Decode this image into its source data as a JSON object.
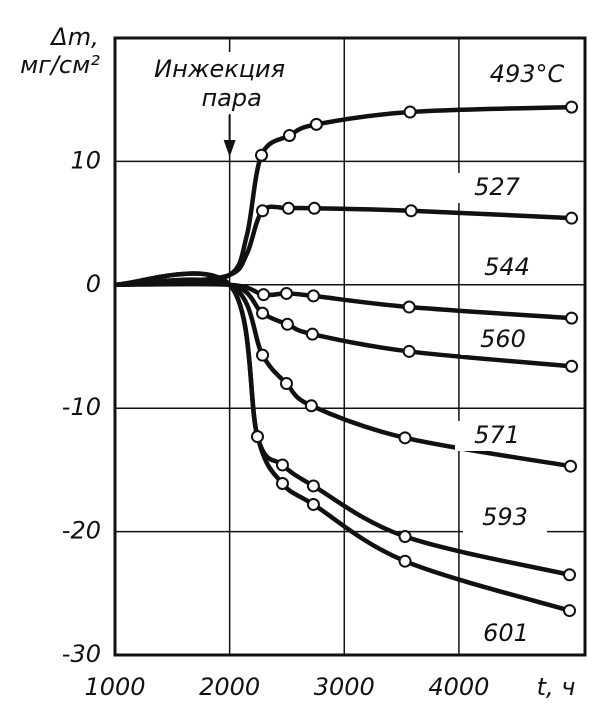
{
  "chart_data": {
    "type": "line",
    "y_label": [
      "Δm,",
      "мг/см²"
    ],
    "x_label": "t, ч",
    "annotation": {
      "lines": [
        "Инжекция",
        "пара"
      ],
      "x": 2000
    },
    "xlim": [
      1000,
      5100
    ],
    "ylim": [
      -30,
      20
    ],
    "xticks": [
      1000,
      2000,
      3000,
      4000
    ],
    "yticks": [
      -30,
      -20,
      -10,
      0,
      10
    ],
    "grid": true,
    "series": [
      {
        "name": "493°С",
        "color": "#111111",
        "x": [
          1000,
          1500,
          2000,
          2150,
          2278,
          2522,
          2757,
          3574,
          4983
        ],
        "values": [
          0,
          0.2,
          0.8,
          4,
          10.5,
          12.1,
          13.0,
          14.0,
          14.4
        ],
        "markers": [
          false,
          false,
          false,
          false,
          true,
          true,
          true,
          true,
          true
        ]
      },
      {
        "name": "527",
        "color": "#111111",
        "x": [
          1000,
          1500,
          2000,
          2150,
          2287,
          2513,
          2739,
          3583,
          4983
        ],
        "values": [
          0,
          0.2,
          0.8,
          2.5,
          6.0,
          6.2,
          6.2,
          6.0,
          5.4
        ],
        "markers": [
          false,
          false,
          false,
          false,
          true,
          true,
          true,
          true,
          true
        ]
      },
      {
        "name": "544",
        "color": "#111111",
        "x": [
          1000,
          2000,
          2296,
          2496,
          2731,
          3566,
          4983
        ],
        "values": [
          0,
          0,
          -0.8,
          -0.7,
          -0.9,
          -1.8,
          -2.7
        ],
        "markers": [
          false,
          false,
          true,
          true,
          true,
          true,
          true
        ]
      },
      {
        "name": "560",
        "color": "#111111",
        "x": [
          1000,
          2000,
          2287,
          2504,
          2722,
          3566,
          4983
        ],
        "values": [
          0,
          0,
          -2.3,
          -3.2,
          -4.0,
          -5.4,
          -6.6
        ],
        "markers": [
          false,
          false,
          true,
          true,
          true,
          true,
          true
        ]
      },
      {
        "name": "571",
        "color": "#111111",
        "x": [
          1000,
          2000,
          2287,
          2496,
          2713,
          3530,
          4974
        ],
        "values": [
          0,
          0,
          -5.7,
          -8.0,
          -9.8,
          -12.4,
          -14.7
        ],
        "markers": [
          false,
          false,
          true,
          true,
          true,
          true,
          true
        ]
      },
      {
        "name": "593",
        "color": "#111111",
        "x": [
          1000,
          2000,
          2243,
          2461,
          2731,
          3530,
          4965
        ],
        "values": [
          0,
          0,
          -12.3,
          -14.6,
          -16.3,
          -20.4,
          -23.5
        ],
        "markers": [
          false,
          false,
          true,
          true,
          true,
          true,
          true
        ]
      },
      {
        "name": "601",
        "color": "#111111",
        "x": [
          1000,
          2000,
          2243,
          2461,
          2731,
          3530,
          4965
        ],
        "values": [
          0,
          0,
          -12.3,
          -16.1,
          -17.8,
          -22.4,
          -26.4
        ],
        "markers": [
          false,
          false,
          false,
          true,
          true,
          true,
          true
        ]
      }
    ]
  }
}
